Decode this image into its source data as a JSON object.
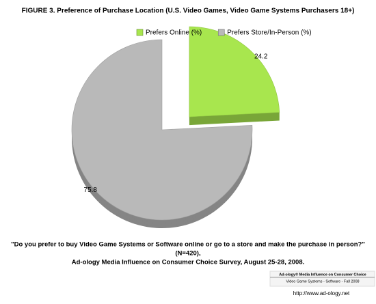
{
  "chart_data": {
    "type": "pie",
    "title": "FIGURE 3. Preference of Purchase Location (U.S. Video Games, Video Game Systems Purchasers 18+)",
    "series": [
      {
        "name": "Prefers Online (%)",
        "color": "#a8e64e",
        "values": [
          24.2
        ]
      },
      {
        "name": "Prefers Store/In-Person (%)",
        "color": "#b9b9b9",
        "values": [
          75.8
        ]
      }
    ],
    "legend": "top",
    "question": "\"Do you prefer to buy Video Game Systems or Software online or go to a store and make the purchase in person?\"",
    "sample": "(N=420),",
    "source": "Ad-ology Media Influence on Consumer Choice Survey, August 25-28, 2008.",
    "badge": {
      "line1": "Ad-ology® Media Influence on Consumer Choice",
      "line2": "Video Game Systems - Software - Fall 2008",
      "url": "http://www.ad-ology.net"
    }
  }
}
